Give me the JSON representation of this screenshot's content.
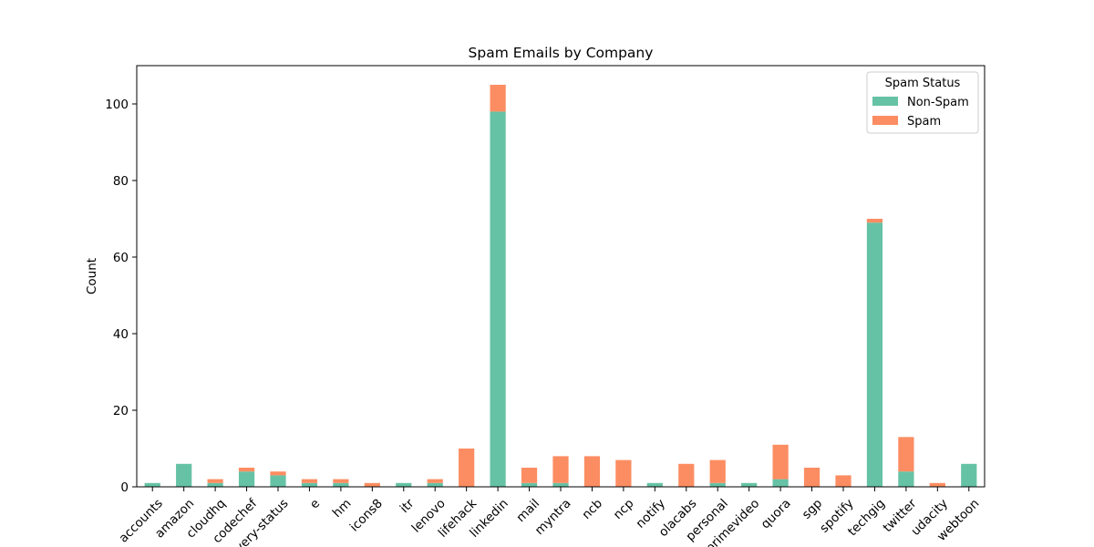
{
  "chart_data": {
    "type": "bar",
    "stacked": true,
    "title": "Spam Emails by Company",
    "xlabel": "",
    "ylabel": "Count",
    "ylim": [
      0,
      110
    ],
    "yticks": [
      0,
      20,
      40,
      60,
      80,
      100
    ],
    "grid": false,
    "legend": {
      "title": "Spam Status",
      "placement": "top-right"
    },
    "categories": [
      "accounts",
      "amazon",
      "cloudhq",
      "codechef",
      "delivery-status",
      "e",
      "hm",
      "icons8",
      "itr",
      "lenovo",
      "lifehack",
      "linkedin",
      "mail",
      "myntra",
      "ncb",
      "ncp",
      "notify",
      "olacabs",
      "personal",
      "primevideo",
      "quora",
      "sgp",
      "spotify",
      "techgig",
      "twitter",
      "udacity",
      "webtoon"
    ],
    "series": [
      {
        "name": "Non-Spam",
        "color": "#66c2a5",
        "values": [
          1,
          6,
          1,
          4,
          3,
          1,
          1,
          0,
          1,
          1,
          0,
          98,
          1,
          1,
          0,
          0,
          1,
          0,
          1,
          1,
          2,
          0,
          0,
          69,
          4,
          0,
          6
        ]
      },
      {
        "name": "Spam",
        "color": "#fc8d62",
        "values": [
          0,
          0,
          1,
          1,
          1,
          1,
          1,
          1,
          0,
          1,
          10,
          7,
          4,
          7,
          8,
          7,
          0,
          6,
          6,
          0,
          9,
          5,
          3,
          1,
          9,
          1,
          0
        ]
      }
    ]
  }
}
